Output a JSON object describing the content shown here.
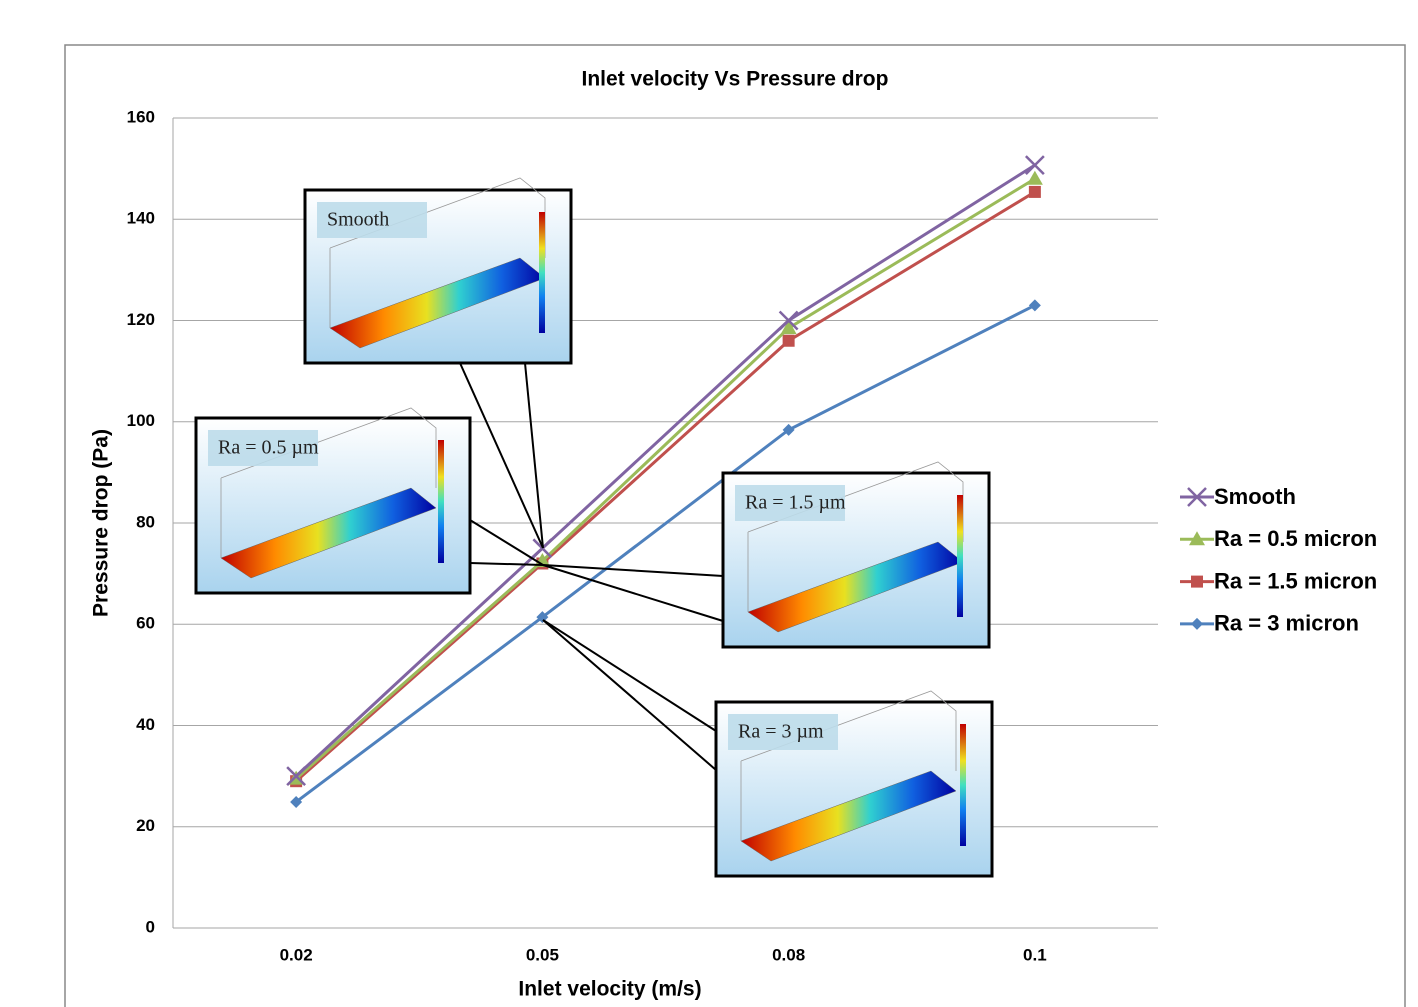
{
  "chart_data": {
    "type": "line",
    "title": "Inlet velocity Vs Pressure drop",
    "x_label": "Inlet velocity (m/s)",
    "y_label": "Pressure drop (Pa)",
    "categories": [
      "0.02",
      "0.05",
      "0.08",
      "0.1"
    ],
    "ylim": [
      0,
      160
    ],
    "yticks": [
      0,
      20,
      40,
      60,
      80,
      100,
      120,
      140,
      160
    ],
    "grid": true,
    "legend": "right",
    "series": [
      {
        "name": "Smooth",
        "color": "#8064a2",
        "marker": "x",
        "values": [
          30,
          75,
          120,
          150.7
        ]
      },
      {
        "name": "Ra = 0.5 micron",
        "color": "#9bbb59",
        "marker": "triangle",
        "values": [
          29.5,
          72.5,
          118.5,
          148
        ]
      },
      {
        "name": "Ra = 1.5 micron",
        "color": "#c0504d",
        "marker": "square",
        "values": [
          29,
          72,
          116,
          145.4
        ]
      },
      {
        "name": "Ra = 3 micron",
        "color": "#4f81bd",
        "marker": "diamond",
        "values": [
          24.9,
          61.4,
          98.4,
          123
        ]
      }
    ],
    "annotations": [
      {
        "text": "Smooth"
      },
      {
        "text": "Ra = 0.5 µm"
      },
      {
        "text": "Ra = 1.5 µm"
      },
      {
        "text": "Ra = 3 µm"
      }
    ]
  }
}
